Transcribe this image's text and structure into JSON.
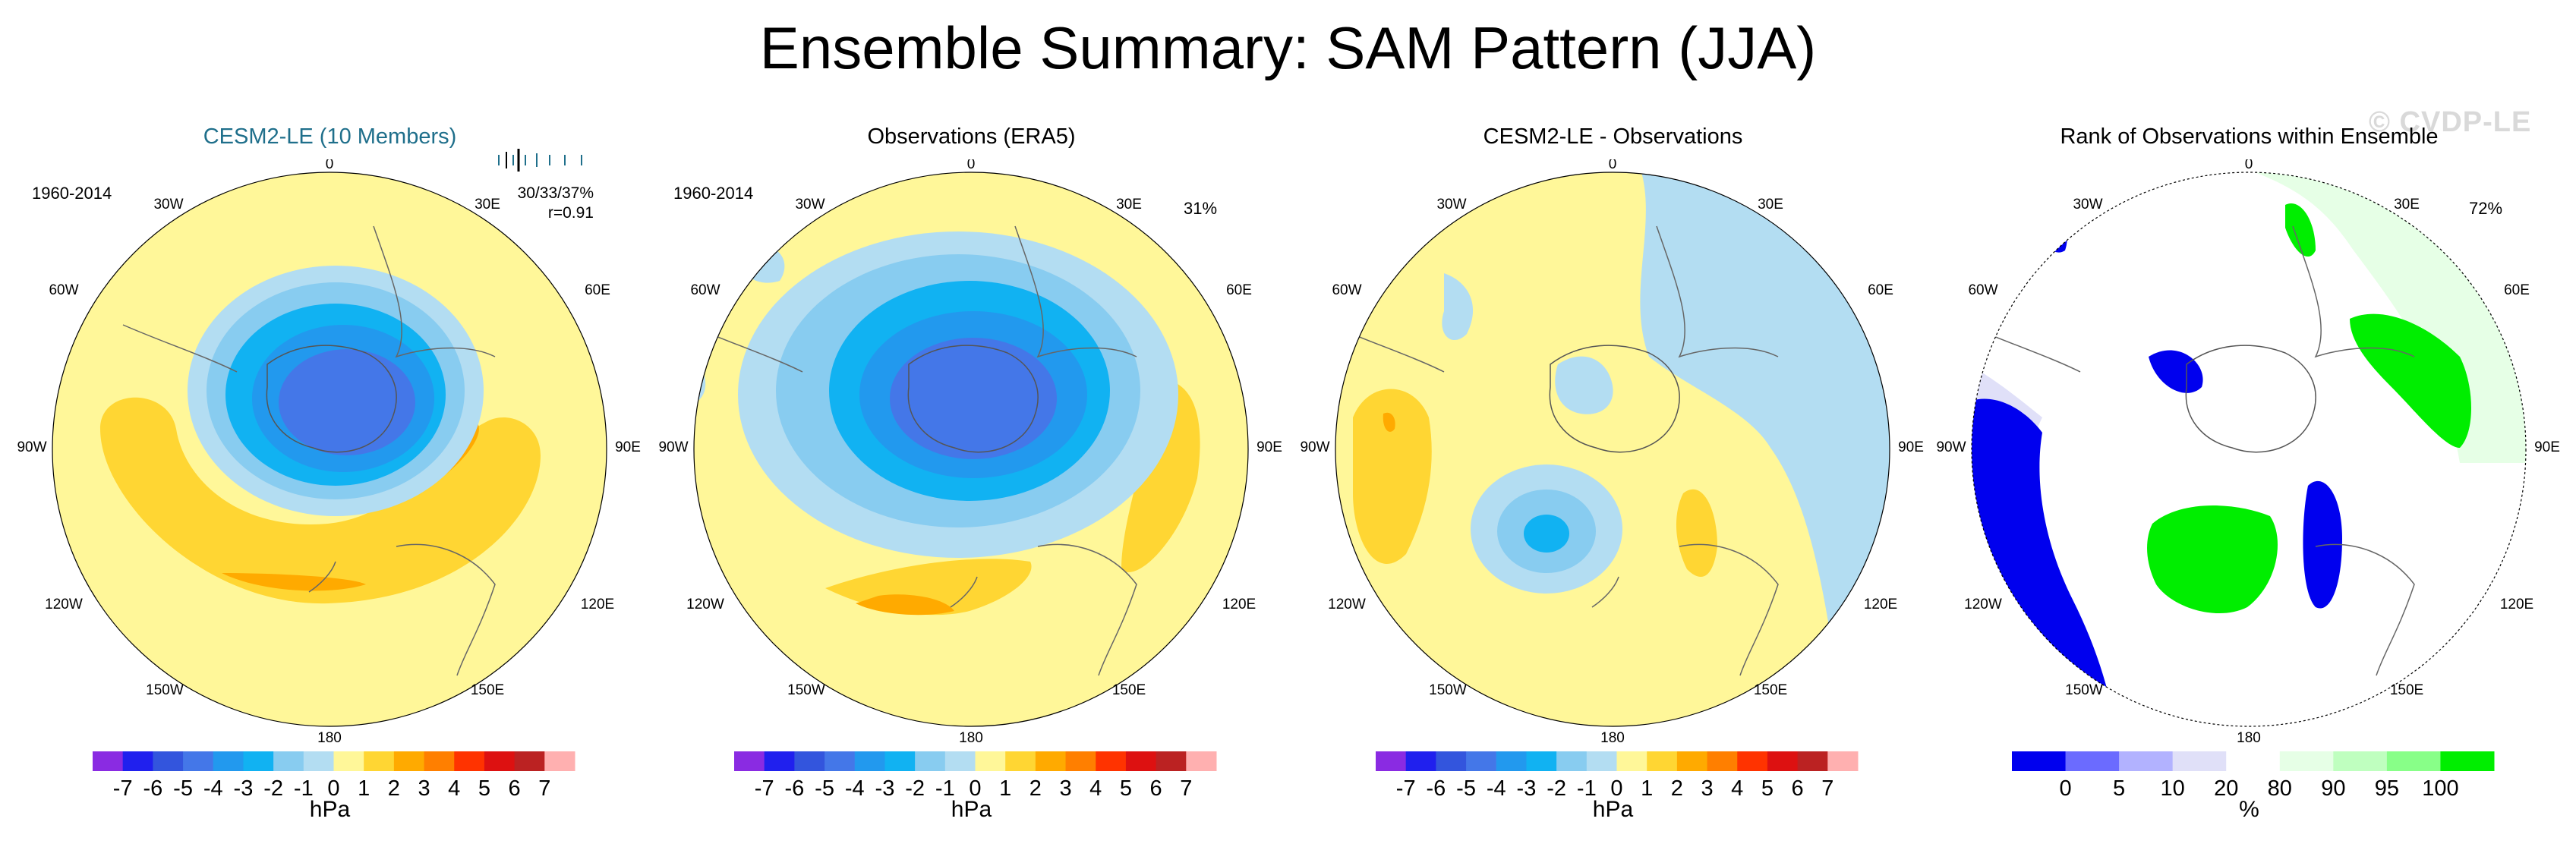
{
  "title": "Ensemble Summary: SAM Pattern (JJA)",
  "watermark": "© CVDP-LE",
  "lon_labels": [
    "0",
    "30E",
    "60E",
    "90E",
    "120E",
    "150E",
    "180",
    "150W",
    "120W",
    "90W",
    "60W",
    "30W"
  ],
  "panels": [
    {
      "title": "CESM2-LE (10 Members)",
      "period": "1960-2014",
      "stat_line1": "30/33/37%",
      "stat_line2": "r=0.91",
      "colorbar_ticks": [
        "-7",
        "-6",
        "-5",
        "-4",
        "-3",
        "-2",
        "-1",
        "0",
        "1",
        "2",
        "3",
        "4",
        "5",
        "6",
        "7"
      ],
      "units": "hPa"
    },
    {
      "title": "Observations (ERA5)",
      "period": "1960-2014",
      "pct": "31%",
      "colorbar_ticks": [
        "-7",
        "-6",
        "-5",
        "-4",
        "-3",
        "-2",
        "-1",
        "0",
        "1",
        "2",
        "3",
        "4",
        "5",
        "6",
        "7"
      ],
      "units": "hPa"
    },
    {
      "title": "CESM2-LE - Observations",
      "colorbar_ticks": [
        "-7",
        "-6",
        "-5",
        "-4",
        "-3",
        "-2",
        "-1",
        "0",
        "1",
        "2",
        "3",
        "4",
        "5",
        "6",
        "7"
      ],
      "units": "hPa"
    },
    {
      "title": "Rank of Observations within Ensemble",
      "pct": "72%",
      "colorbar_ticks": [
        "0",
        "5",
        "10",
        "20",
        "80",
        "90",
        "95",
        "100"
      ],
      "units": "%"
    }
  ],
  "chart_data": {
    "type": "heatmap",
    "projection": "polar-stereographic-south",
    "anomaly_colors": [
      "#8a2be2",
      "#2020ee",
      "#3355dd",
      "#4477e8",
      "#2299ee",
      "#11b2f2",
      "#88ccf0",
      "#b3ddf2",
      "#fff799",
      "#ffd633",
      "#ffaa00",
      "#ff7f00",
      "#ff3300",
      "#dd1111",
      "#bb2222",
      "#ffb0b0"
    ],
    "rank_colors": [
      "#0000ee",
      "#6b6bff",
      "#b2b2ff",
      "#e0e0f8",
      "#ffffff",
      "#e6ffe6",
      "#bfffbf",
      "#88ff88",
      "#00ee00"
    ],
    "anomaly_levels": [
      -7,
      -6,
      -5,
      -4,
      -3,
      -2,
      -1,
      0,
      1,
      2,
      3,
      4,
      5,
      6,
      7
    ],
    "rank_levels": [
      0,
      5,
      10,
      20,
      80,
      90,
      95,
      100
    ]
  }
}
